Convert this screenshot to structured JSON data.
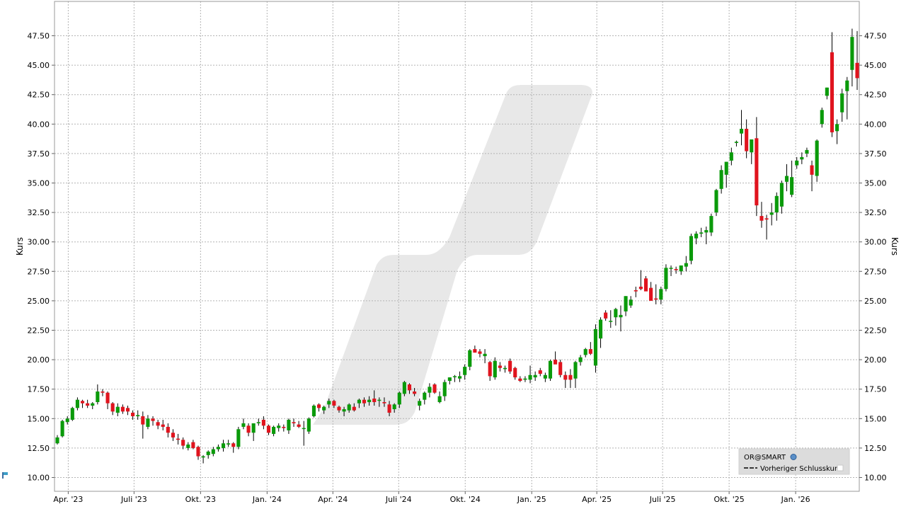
{
  "chart_data": {
    "type": "candlestick",
    "ylabel_left": "Kurs",
    "ylabel_right": "Kurs",
    "ylim": [
      9.0,
      50.0
    ],
    "yticks": [
      "10.00",
      "12.50",
      "15.00",
      "17.50",
      "20.00",
      "22.50",
      "25.00",
      "27.50",
      "30.00",
      "32.50",
      "35.00",
      "37.50",
      "40.00",
      "42.50",
      "45.00",
      "47.50"
    ],
    "xlim": [
      "2023-03-13",
      "2026-03-30"
    ],
    "xticks": [
      {
        "date": "2023-04-01",
        "label": "Apr. '23"
      },
      {
        "date": "2023-07-01",
        "label": "Juli '23"
      },
      {
        "date": "2023-10-01",
        "label": "Okt. '23"
      },
      {
        "date": "2024-01-01",
        "label": "Jan. '24"
      },
      {
        "date": "2024-04-01",
        "label": "Apr. '24"
      },
      {
        "date": "2024-07-01",
        "label": "Juli '24"
      },
      {
        "date": "2024-10-01",
        "label": "Okt. '24"
      },
      {
        "date": "2025-01-01",
        "label": "Jan. '25"
      },
      {
        "date": "2025-04-01",
        "label": "Apr. '25"
      },
      {
        "date": "2025-07-01",
        "label": "Juli '25"
      },
      {
        "date": "2025-10-01",
        "label": "Okt. '25"
      },
      {
        "date": "2026-01-01",
        "label": "Jan. '26"
      }
    ],
    "grid": true,
    "legend": {
      "position": "bottom-right",
      "entries": [
        "OR@SMART",
        "Vorheriger Schlusskurs"
      ]
    },
    "colors": {
      "up": "#0a9a0a",
      "down": "#e0141e",
      "wick": "#000000",
      "grid": "#b4b4b4",
      "watermark": "#e8e8e8"
    },
    "candles_ohlc": [
      [
        12.9,
        13.6,
        12.8,
        13.4
      ],
      [
        13.5,
        14.9,
        13.4,
        14.8
      ],
      [
        14.7,
        15.2,
        14.5,
        15.0
      ],
      [
        14.9,
        16.0,
        14.8,
        15.9
      ],
      [
        15.9,
        16.8,
        15.7,
        16.6
      ],
      [
        16.5,
        16.6,
        15.9,
        16.3
      ],
      [
        16.3,
        16.6,
        15.9,
        16.1
      ],
      [
        16.1,
        16.4,
        15.8,
        16.3
      ],
      [
        16.4,
        17.9,
        16.2,
        17.3
      ],
      [
        17.3,
        17.5,
        16.9,
        17.2
      ],
      [
        17.2,
        17.3,
        15.8,
        16.3
      ],
      [
        16.3,
        16.4,
        15.3,
        15.6
      ],
      [
        15.5,
        16.3,
        15.2,
        16.0
      ],
      [
        16.0,
        16.2,
        15.4,
        15.6
      ],
      [
        15.9,
        16.1,
        15.3,
        15.6
      ],
      [
        15.5,
        15.7,
        14.9,
        15.2
      ],
      [
        15.2,
        15.7,
        14.9,
        15.3
      ],
      [
        15.2,
        15.6,
        13.3,
        14.5
      ],
      [
        14.3,
        15.3,
        14.1,
        15.0
      ],
      [
        15.0,
        15.2,
        14.4,
        14.8
      ],
      [
        14.7,
        14.9,
        14.1,
        14.4
      ],
      [
        14.5,
        14.9,
        14.0,
        14.3
      ],
      [
        14.3,
        14.6,
        13.4,
        13.8
      ],
      [
        13.8,
        14.1,
        13.1,
        13.4
      ],
      [
        13.3,
        13.7,
        12.8,
        13.2
      ],
      [
        13.2,
        13.4,
        12.4,
        12.7
      ],
      [
        12.5,
        13.0,
        12.3,
        12.8
      ],
      [
        13.0,
        13.2,
        12.4,
        12.5
      ],
      [
        12.6,
        12.7,
        11.5,
        11.8
      ],
      [
        11.7,
        11.9,
        11.2,
        11.8
      ],
      [
        11.9,
        12.3,
        11.6,
        12.2
      ],
      [
        12.0,
        12.6,
        11.8,
        12.4
      ],
      [
        12.4,
        12.8,
        12.2,
        12.6
      ],
      [
        12.5,
        13.2,
        12.2,
        12.9
      ],
      [
        12.8,
        13.2,
        12.6,
        12.9
      ],
      [
        12.9,
        13.0,
        12.1,
        12.6
      ],
      [
        12.6,
        14.3,
        12.4,
        14.1
      ],
      [
        14.3,
        15.0,
        14.1,
        14.6
      ],
      [
        14.4,
        14.6,
        13.5,
        13.8
      ],
      [
        13.8,
        14.6,
        13.1,
        14.6
      ],
      [
        14.6,
        15.0,
        14.4,
        14.7
      ],
      [
        14.9,
        15.2,
        14.1,
        14.4
      ],
      [
        14.4,
        14.5,
        13.6,
        13.8
      ],
      [
        13.7,
        14.4,
        13.5,
        14.3
      ],
      [
        14.2,
        14.6,
        13.9,
        14.4
      ],
      [
        14.3,
        14.5,
        13.9,
        14.2
      ],
      [
        14.0,
        15.0,
        13.7,
        14.9
      ],
      [
        14.7,
        15.0,
        14.3,
        14.6
      ],
      [
        14.5,
        14.8,
        14.2,
        14.3
      ],
      [
        14.2,
        14.8,
        12.7,
        14.2
      ],
      [
        13.9,
        15.1,
        13.7,
        15.0
      ],
      [
        15.2,
        16.2,
        15.1,
        16.1
      ],
      [
        16.2,
        16.3,
        15.6,
        15.9
      ],
      [
        15.7,
        16.1,
        15.4,
        16.0
      ],
      [
        16.2,
        16.7,
        15.9,
        16.5
      ],
      [
        16.5,
        16.6,
        15.9,
        16.1
      ],
      [
        16.0,
        16.1,
        15.5,
        15.7
      ],
      [
        15.6,
        16.0,
        15.2,
        15.8
      ],
      [
        15.7,
        16.3,
        15.5,
        16.2
      ],
      [
        16.0,
        16.3,
        15.6,
        15.7
      ],
      [
        16.3,
        16.7,
        15.9,
        16.6
      ],
      [
        16.6,
        16.8,
        16.0,
        16.3
      ],
      [
        16.4,
        16.9,
        16.1,
        16.6
      ],
      [
        16.7,
        17.4,
        16.1,
        16.4
      ],
      [
        16.6,
        16.8,
        16.0,
        16.6
      ],
      [
        16.4,
        16.8,
        16.0,
        16.3
      ],
      [
        16.2,
        16.5,
        15.2,
        15.5
      ],
      [
        15.8,
        16.3,
        15.5,
        16.2
      ],
      [
        16.2,
        17.3,
        15.9,
        17.2
      ],
      [
        17.1,
        18.2,
        16.9,
        18.1
      ],
      [
        17.9,
        18.0,
        17.1,
        17.4
      ],
      [
        17.3,
        17.6,
        16.9,
        17.1
      ],
      [
        16.1,
        16.7,
        15.7,
        16.5
      ],
      [
        16.6,
        17.3,
        16.2,
        17.2
      ],
      [
        17.2,
        18.0,
        16.8,
        17.7
      ],
      [
        17.9,
        18.0,
        17.1,
        17.2
      ],
      [
        16.4,
        17.3,
        16.3,
        16.9
      ],
      [
        16.9,
        18.3,
        16.5,
        18.1
      ],
      [
        18.2,
        18.5,
        17.9,
        18.5
      ],
      [
        18.6,
        18.7,
        18.1,
        18.6
      ],
      [
        18.4,
        19.0,
        18.1,
        18.6
      ],
      [
        18.7,
        19.6,
        18.3,
        19.4
      ],
      [
        19.4,
        20.9,
        19.1,
        20.8
      ],
      [
        20.9,
        21.2,
        20.6,
        20.6
      ],
      [
        20.7,
        20.9,
        20.2,
        20.5
      ],
      [
        20.3,
        20.9,
        19.7,
        20.5
      ],
      [
        19.8,
        19.9,
        18.2,
        18.6
      ],
      [
        18.5,
        20.2,
        18.3,
        19.9
      ],
      [
        19.5,
        19.8,
        19.0,
        19.3
      ],
      [
        19.2,
        19.5,
        18.9,
        19.3
      ],
      [
        19.9,
        20.1,
        18.8,
        19.0
      ],
      [
        19.3,
        19.4,
        18.3,
        18.5
      ],
      [
        18.4,
        18.6,
        18.1,
        18.2
      ],
      [
        18.3,
        18.6,
        18.1,
        18.4
      ],
      [
        18.3,
        19.5,
        18.0,
        18.7
      ],
      [
        18.5,
        19.0,
        18.2,
        18.7
      ],
      [
        19.1,
        19.3,
        18.6,
        18.8
      ],
      [
        18.4,
        18.9,
        18.1,
        18.7
      ],
      [
        18.4,
        20.0,
        18.2,
        19.9
      ],
      [
        20.0,
        20.7,
        19.7,
        19.6
      ],
      [
        19.8,
        20.0,
        18.5,
        18.7
      ],
      [
        18.7,
        19.0,
        17.6,
        18.3
      ],
      [
        18.7,
        19.2,
        17.6,
        18.3
      ],
      [
        18.4,
        19.9,
        17.6,
        19.8
      ],
      [
        19.8,
        20.4,
        19.5,
        20.2
      ],
      [
        20.4,
        21.0,
        20.2,
        20.9
      ],
      [
        20.9,
        21.5,
        20.4,
        20.5
      ],
      [
        19.5,
        23.0,
        18.9,
        22.6
      ],
      [
        21.8,
        23.6,
        21.0,
        23.4
      ],
      [
        24.0,
        24.2,
        23.3,
        23.5
      ],
      [
        23.3,
        24.2,
        22.7,
        23.3
      ],
      [
        23.6,
        24.4,
        22.9,
        24.3
      ],
      [
        23.6,
        24.6,
        22.4,
        23.8
      ],
      [
        24.1,
        25.4,
        23.7,
        25.4
      ],
      [
        24.6,
        25.4,
        24.4,
        25.1
      ],
      [
        25.9,
        26.2,
        25.3,
        25.8
      ],
      [
        26.2,
        27.6,
        25.9,
        26.0
      ],
      [
        26.9,
        27.1,
        25.9,
        25.8
      ],
      [
        26.1,
        26.6,
        25.1,
        25.0
      ],
      [
        25.2,
        26.4,
        24.7,
        25.1
      ],
      [
        25.1,
        26.2,
        24.7,
        26.0
      ],
      [
        26.0,
        28.1,
        25.8,
        27.8
      ],
      [
        27.8,
        28.0,
        27.1,
        27.8
      ],
      [
        27.7,
        27.9,
        27.3,
        27.6
      ],
      [
        27.5,
        28.0,
        27.2,
        28.0
      ],
      [
        27.9,
        28.8,
        27.5,
        28.2
      ],
      [
        28.4,
        30.7,
        28.1,
        30.5
      ],
      [
        30.3,
        30.9,
        29.8,
        30.7
      ],
      [
        30.7,
        31.2,
        30.4,
        30.8
      ],
      [
        30.8,
        31.3,
        29.8,
        31.0
      ],
      [
        30.8,
        32.4,
        30.5,
        32.2
      ],
      [
        32.5,
        34.5,
        32.2,
        34.4
      ],
      [
        34.5,
        36.5,
        34.1,
        36.1
      ],
      [
        35.7,
        36.8,
        34.6,
        36.8
      ],
      [
        36.9,
        38.0,
        36.5,
        37.6
      ],
      [
        38.4,
        38.6,
        38.1,
        38.5
      ],
      [
        39.2,
        41.2,
        38.2,
        39.6
      ],
      [
        39.6,
        40.4,
        37.1,
        37.7
      ],
      [
        37.6,
        38.6,
        36.6,
        38.7
      ],
      [
        38.8,
        40.6,
        32.2,
        33.1
      ],
      [
        32.2,
        33.4,
        31.2,
        31.8
      ],
      [
        32.0,
        32.3,
        30.2,
        31.9
      ],
      [
        32.3,
        33.3,
        31.4,
        32.5
      ],
      [
        32.5,
        34.2,
        31.8,
        33.9
      ],
      [
        33.0,
        35.2,
        32.4,
        35.0
      ],
      [
        35.1,
        36.6,
        34.3,
        35.6
      ],
      [
        34.0,
        36.9,
        33.8,
        35.5
      ],
      [
        36.5,
        37.2,
        36.2,
        36.9
      ],
      [
        37.0,
        37.6,
        36.6,
        37.2
      ],
      [
        37.5,
        38.0,
        37.2,
        37.8
      ],
      [
        36.5,
        36.9,
        34.3,
        35.7
      ],
      [
        35.6,
        38.7,
        35.1,
        38.6
      ],
      [
        40.0,
        41.4,
        39.7,
        41.2
      ],
      [
        42.4,
        43.1,
        42.1,
        43.1
      ],
      [
        46.1,
        47.8,
        38.9,
        39.3
      ],
      [
        39.4,
        40.4,
        38.3,
        40.0
      ],
      [
        41.0,
        43.0,
        40.2,
        42.6
      ],
      [
        42.8,
        44.0,
        40.4,
        43.7
      ],
      [
        44.6,
        48.1,
        43.2,
        47.4
      ],
      [
        45.2,
        47.9,
        42.9,
        43.9
      ]
    ]
  }
}
